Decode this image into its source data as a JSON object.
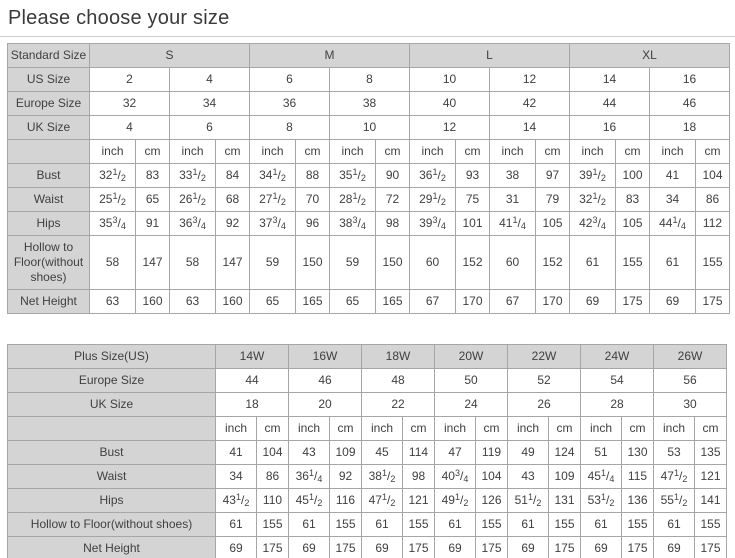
{
  "page": {
    "title": "Please choose your size"
  },
  "colors": {
    "header_bg": "#d4d4d4",
    "border": "#a6a6a6",
    "text": "#404040",
    "background": "#ffffff"
  },
  "standard_table": {
    "header_label": "Standard Size",
    "sizes": [
      "S",
      "M",
      "L",
      "XL"
    ],
    "us_size_label": "US Size",
    "us_sizes": [
      "2",
      "4",
      "6",
      "8",
      "10",
      "12",
      "14",
      "16"
    ],
    "europe_size_label": "Europe Size",
    "europe_sizes": [
      "32",
      "34",
      "36",
      "38",
      "40",
      "42",
      "44",
      "46"
    ],
    "uk_size_label": "UK Size",
    "uk_sizes": [
      "4",
      "6",
      "8",
      "10",
      "12",
      "14",
      "16",
      "18"
    ],
    "unit_inch": "inch",
    "unit_cm": "cm",
    "measurement_rows": [
      {
        "label": "Bust",
        "values": [
          "32 1/2",
          "83",
          "33 1/2",
          "84",
          "34 1/2",
          "88",
          "35 1/2",
          "90",
          "36 1/2",
          "93",
          "38",
          "97",
          "39 1/2",
          "100",
          "41",
          "104"
        ]
      },
      {
        "label": "Waist",
        "values": [
          "25 1/2",
          "65",
          "26 1/2",
          "68",
          "27 1/2",
          "70",
          "28 1/2",
          "72",
          "29 1/2",
          "75",
          "31",
          "79",
          "32 1/2",
          "83",
          "34",
          "86"
        ]
      },
      {
        "label": "Hips",
        "values": [
          "35 3/4",
          "91",
          "36 3/4",
          "92",
          "37 3/4",
          "96",
          "38 3/4",
          "98",
          "39 3/4",
          "101",
          "41 1/4",
          "105",
          "42 3/4",
          "105",
          "44 1/4",
          "112"
        ]
      },
      {
        "label": "Hollow to Floor(without shoes)",
        "values": [
          "58",
          "147",
          "58",
          "147",
          "59",
          "150",
          "59",
          "150",
          "60",
          "152",
          "60",
          "152",
          "61",
          "155",
          "61",
          "155"
        ]
      },
      {
        "label": "Net Height",
        "values": [
          "63",
          "160",
          "63",
          "160",
          "65",
          "165",
          "65",
          "165",
          "67",
          "170",
          "67",
          "170",
          "69",
          "175",
          "69",
          "175"
        ]
      }
    ]
  },
  "plus_table": {
    "header_label": "Plus Size(US)",
    "sizes": [
      "14W",
      "16W",
      "18W",
      "20W",
      "22W",
      "24W",
      "26W"
    ],
    "europe_size_label": "Europe Size",
    "europe_sizes": [
      "44",
      "46",
      "48",
      "50",
      "52",
      "54",
      "56"
    ],
    "uk_size_label": "UK Size",
    "uk_sizes": [
      "18",
      "20",
      "22",
      "24",
      "26",
      "28",
      "30"
    ],
    "unit_inch": "inch",
    "unit_cm": "cm",
    "measurement_rows": [
      {
        "label": "Bust",
        "values": [
          "41",
          "104",
          "43",
          "109",
          "45",
          "114",
          "47",
          "119",
          "49",
          "124",
          "51",
          "130",
          "53",
          "135"
        ]
      },
      {
        "label": "Waist",
        "values": [
          "34",
          "86",
          "36 1/4",
          "92",
          "38 1/2",
          "98",
          "40 3/4",
          "104",
          "43",
          "109",
          "45 1/4",
          "115",
          "47 1/2",
          "121"
        ]
      },
      {
        "label": "Hips",
        "values": [
          "43 1/2",
          "110",
          "45 1/2",
          "116",
          "47 1/2",
          "121",
          "49 1/2",
          "126",
          "51 1/2",
          "131",
          "53 1/2",
          "136",
          "55 1/2",
          "141"
        ]
      },
      {
        "label": "Hollow to Floor(without shoes)",
        "values": [
          "61",
          "155",
          "61",
          "155",
          "61",
          "155",
          "61",
          "155",
          "61",
          "155",
          "61",
          "155",
          "61",
          "155"
        ]
      },
      {
        "label": "Net Height",
        "values": [
          "69",
          "175",
          "69",
          "175",
          "69",
          "175",
          "69",
          "175",
          "69",
          "175",
          "69",
          "175",
          "69",
          "175"
        ]
      }
    ]
  }
}
